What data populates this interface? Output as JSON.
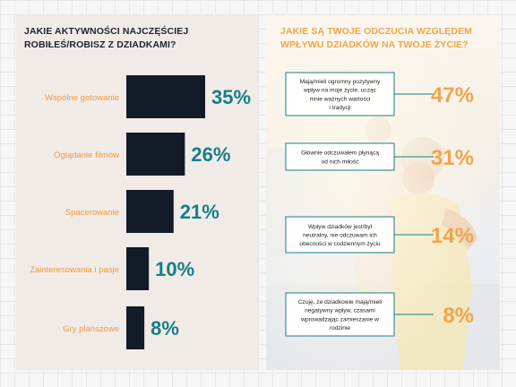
{
  "colors": {
    "left_bg": "#f1ebe8",
    "bar": "#131b29",
    "label_orange": "#ec9a3e",
    "value_teal": "#167f86",
    "right_pct": "#f0a44a",
    "box_border": "#167f86"
  },
  "left_title": "JAKIE AKTYWNOŚCI NAJCZĘŚCIEJ ROBIŁEŚ/ROBISZ Z DZIADKAMI?",
  "right_title": "JAKIE SĄ TWOJE ODCZUCIA WZGLĘDEM WPŁYWU DZIADKÓW NA TWOJE ŻYCIE?",
  "chart_data": [
    {
      "type": "bar",
      "orientation": "horizontal",
      "title": "JAKIE AKTYWNOŚCI NAJCZĘŚCIEJ ROBIŁEŚ/ROBISZ Z DZIADKAMI?",
      "categories": [
        "Wspólne gotowanie",
        "Oglądanie filmów",
        "Spacerowanie",
        "Zainteresowania i pasje",
        "Gry planszowe"
      ],
      "values": [
        35,
        26,
        21,
        10,
        8
      ],
      "value_labels": [
        "35%",
        "26%",
        "21%",
        "10%",
        "8%"
      ],
      "unit": "%",
      "xlim": [
        0,
        35
      ]
    },
    {
      "type": "table",
      "title": "JAKIE SĄ TWOJE ODCZUCIA WZGLĘDEM WPŁYWU DZIADKÓW NA TWOJE ŻYCIE?",
      "categories": [
        "Mają/mieli ogromny pozytywny wpływ na moje życie, ucząc mnie ważnych wartości i tradycji",
        "Głównie odczuwałem płynącą od nich miłość",
        "Wpływ dziadków jest/był neutralny, nie odczuwam ich obecności w codziennym życiu",
        "Czuję, że dziadkowie mają/mieli negatywny wpływ, czasami wprowadzając zamieszanie w rodzinie"
      ],
      "values": [
        47,
        31,
        14,
        8
      ],
      "value_labels": [
        "47%",
        "31%",
        "14%",
        "8%"
      ],
      "unit": "%"
    }
  ]
}
